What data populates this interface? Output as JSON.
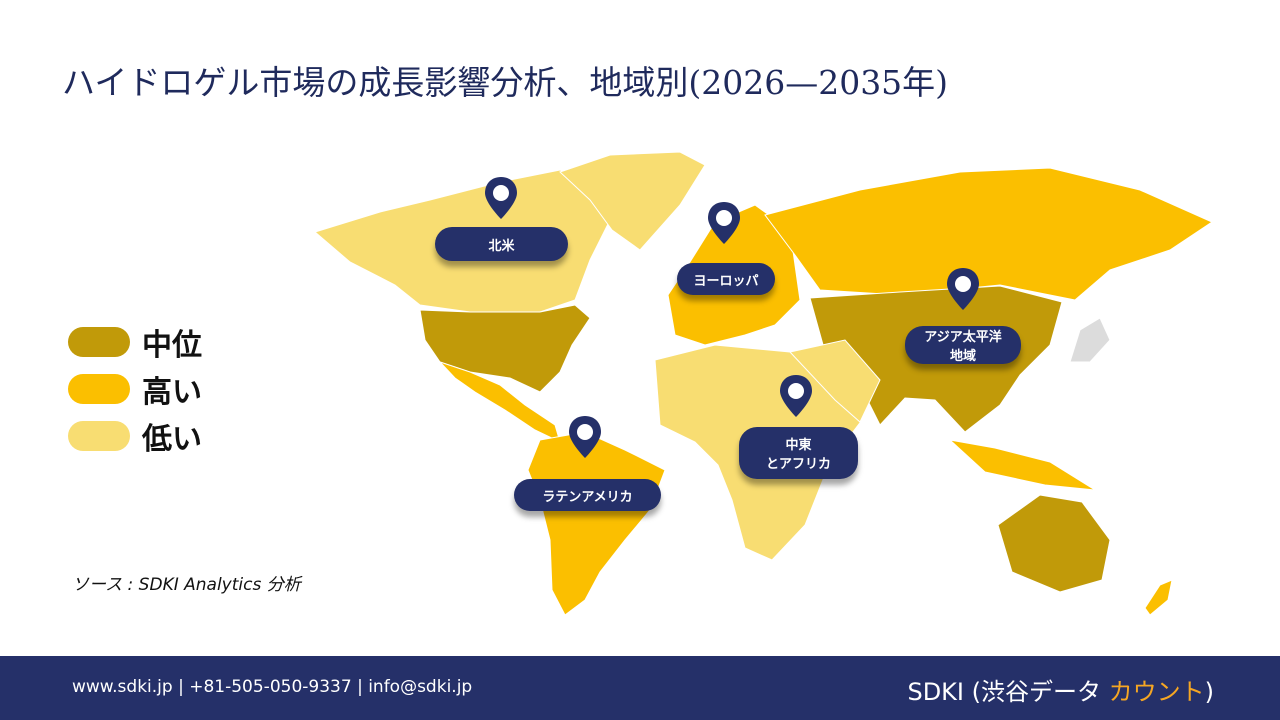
{
  "header": {
    "title": "ハイドロゲル市場の成長影響分析、地域別(2026—2035年)"
  },
  "legend": {
    "items": [
      {
        "label": "中位",
        "color": "#c19a09"
      },
      {
        "label": "高い",
        "color": "#fbbf00"
      },
      {
        "label": "低い",
        "color": "#f8dd72"
      }
    ]
  },
  "regions": [
    {
      "lines": [
        "北米"
      ]
    },
    {
      "lines": [
        "ヨーロッパ"
      ]
    },
    {
      "lines": [
        "アジア太平洋",
        "地域"
      ]
    },
    {
      "lines": [
        "中東",
        "とアフリカ"
      ]
    },
    {
      "lines": [
        "ラテンアメリカ"
      ]
    }
  ],
  "source": "ソース : SDKI Analytics 分析",
  "footer": {
    "contact": "www.sdki.jp | +81-505-050-9337 | info@sdki.jp",
    "brand": "SDKI (渋谷データ ",
    "brand_highlight": "カウント",
    "brand_close": ")"
  }
}
